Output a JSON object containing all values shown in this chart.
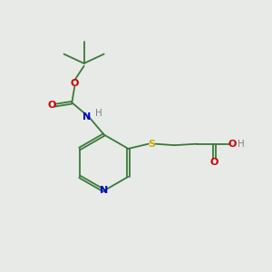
{
  "bg_color": "#e8eae8",
  "bond_color": "#3a7a3a",
  "N_color": "#0000cc",
  "O_color": "#cc0000",
  "S_color": "#ccaa00",
  "H_color": "#808080",
  "line_width": 1.3,
  "figsize": [
    3.0,
    3.0
  ],
  "dpi": 100,
  "xlim": [
    0,
    10
  ],
  "ylim": [
    0,
    10
  ]
}
